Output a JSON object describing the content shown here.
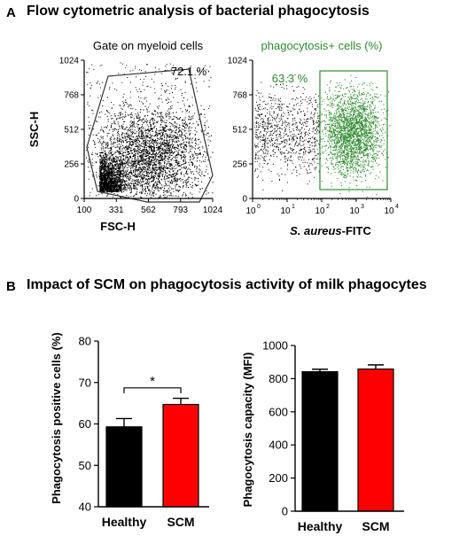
{
  "panel_a": {
    "letter": "A",
    "title": "Flow cytometric analysis of bacterial phagocytosis"
  },
  "panel_b": {
    "letter": "B",
    "title": "Impact of SCM on phagocytosis activity of milk phagocytes"
  },
  "colors": {
    "healthy": "#000000",
    "scm": "#ff0000",
    "gate_green": "#2e8b2e",
    "dot_black": "#000000",
    "dot_green": "#2e8b2e"
  },
  "chart_data": [
    {
      "type": "scatter",
      "title": "Gate on myeloid cells",
      "xlabel": "FSC-H",
      "ylabel": "SSC-H",
      "xlim": [
        100,
        1024
      ],
      "ylim": [
        0,
        1024
      ],
      "x_ticks": [
        "100",
        "331",
        "562",
        "793",
        "1024"
      ],
      "y_ticks": [
        "0",
        "256",
        "512",
        "768",
        "1024"
      ],
      "gate_label": "72.1 %"
    },
    {
      "type": "scatter",
      "title": "phagocytosis+ cells (%)",
      "xlabel_italic": "S. aureus",
      "xlabel_rest": "-FITC",
      "scale": "log",
      "xlim": [
        1,
        10000
      ],
      "ylim": [
        0,
        1024
      ],
      "x_ticks": [
        {
          "base": "10",
          "exp": "0"
        },
        {
          "base": "10",
          "exp": "1"
        },
        {
          "base": "10",
          "exp": "2"
        },
        {
          "base": "10",
          "exp": "3"
        },
        {
          "base": "10",
          "exp": "4"
        }
      ],
      "y_ticks": [
        "0",
        "256",
        "512",
        "768",
        "1024"
      ],
      "gate_label": "63.3 %"
    },
    {
      "type": "bar",
      "categories": [
        "Healthy",
        "SCM"
      ],
      "values": [
        59.3,
        64.7
      ],
      "errors": [
        2.0,
        1.5
      ],
      "ylabel": "Phagocytosis positive cells (%)",
      "ylim": [
        40,
        80
      ],
      "y_ticks": [
        "40",
        "50",
        "60",
        "70",
        "80"
      ],
      "significance": "*"
    },
    {
      "type": "bar",
      "categories": [
        "Healthy",
        "SCM"
      ],
      "values": [
        842,
        858
      ],
      "errors": [
        15,
        25
      ],
      "ylabel": "Phagocytosis capacity (MFI)",
      "ylim": [
        0,
        1000
      ],
      "y_ticks": [
        "0",
        "200",
        "400",
        "600",
        "800",
        "1000"
      ]
    }
  ]
}
